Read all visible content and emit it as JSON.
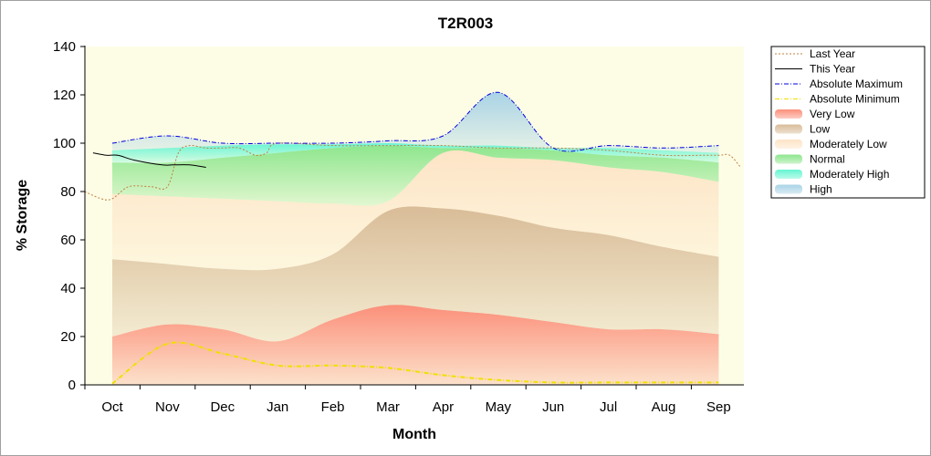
{
  "chart_data": {
    "type": "area",
    "title": "T2R003",
    "xlabel": "Month",
    "ylabel": "% Storage",
    "ylim": [
      0,
      140
    ],
    "yticks": [
      0,
      20,
      40,
      60,
      80,
      100,
      120,
      140
    ],
    "categories": [
      "Oct",
      "Nov",
      "Dec",
      "Jan",
      "Feb",
      "Mar",
      "Apr",
      "May",
      "Jun",
      "Jul",
      "Aug",
      "Sep"
    ],
    "grid": false,
    "legend_position": "right",
    "band_colors": {
      "Very Low": "#fb8f7a",
      "Low": "#d9bc98",
      "Moderately Low": "#fde4c6",
      "Normal": "#8ee68e",
      "Moderately High": "#66f5d2",
      "High": "#a9d3e6"
    },
    "bands": [
      {
        "name": "Very Low",
        "lower": [
          0,
          0,
          0,
          0,
          0,
          0,
          0,
          0,
          0,
          0,
          0,
          0
        ],
        "upper": [
          20,
          25,
          23,
          18,
          27,
          33,
          31,
          29,
          26,
          23,
          23,
          21
        ]
      },
      {
        "name": "Low",
        "lower": [
          20,
          25,
          23,
          18,
          27,
          33,
          31,
          29,
          26,
          23,
          23,
          21
        ],
        "upper": [
          52,
          50,
          48,
          48,
          54,
          72,
          73,
          70,
          65,
          62,
          57,
          53
        ]
      },
      {
        "name": "Moderately Low",
        "lower": [
          52,
          50,
          48,
          48,
          54,
          72,
          73,
          70,
          65,
          62,
          57,
          53
        ],
        "upper": [
          79,
          78,
          77,
          76,
          75,
          76,
          96,
          94,
          93,
          90,
          88,
          84
        ]
      },
      {
        "name": "Normal",
        "lower": [
          79,
          78,
          77,
          76,
          75,
          76,
          96,
          94,
          93,
          90,
          88,
          84
        ],
        "upper": [
          92,
          92,
          94,
          96,
          98,
          99,
          98,
          98,
          97,
          95,
          94,
          92
        ]
      },
      {
        "name": "Moderately High",
        "lower": [
          92,
          92,
          94,
          96,
          98,
          99,
          98,
          98,
          97,
          95,
          94,
          92
        ],
        "upper": [
          97,
          98,
          99,
          99.5,
          99.5,
          100,
          99,
          99,
          98,
          98,
          97,
          96
        ]
      },
      {
        "name": "High",
        "lower": [
          97,
          98,
          99,
          99.5,
          99.5,
          100,
          99,
          99,
          98,
          98,
          97,
          96
        ],
        "upper": [
          100,
          103,
          100,
          100,
          100,
          101,
          103,
          121,
          98,
          99,
          98,
          99
        ]
      }
    ],
    "series": [
      {
        "name": "Last Year",
        "color": "#c08040",
        "style": "dotted",
        "points": [
          [
            -0.5,
            80
          ],
          [
            -0.2,
            77
          ],
          [
            0,
            77
          ],
          [
            0.3,
            82
          ],
          [
            0.7,
            82
          ],
          [
            1,
            82
          ],
          [
            1.2,
            96
          ],
          [
            1.4,
            99
          ],
          [
            1.7,
            98
          ],
          [
            2.0,
            98
          ],
          [
            2.3,
            98
          ],
          [
            2.6,
            95
          ],
          [
            2.8,
            96
          ],
          [
            3.0,
            100
          ],
          [
            4,
            99
          ],
          [
            5,
            99
          ],
          [
            6,
            99
          ],
          [
            7,
            98
          ],
          [
            8,
            98
          ],
          [
            9,
            97
          ],
          [
            10,
            95
          ],
          [
            10.7,
            95
          ],
          [
            11.0,
            95
          ],
          [
            11.2,
            95
          ],
          [
            11.4,
            90
          ]
        ]
      },
      {
        "name": "This Year",
        "color": "#000000",
        "style": "solid",
        "points": [
          [
            -0.35,
            96
          ],
          [
            -0.1,
            95
          ],
          [
            0.1,
            95
          ],
          [
            0.4,
            93
          ],
          [
            0.9,
            91
          ],
          [
            1.1,
            91
          ],
          [
            1.4,
            91
          ],
          [
            1.7,
            90
          ]
        ]
      },
      {
        "name": "Absolute Maximum",
        "color": "#0000dd",
        "style": "dashdot",
        "values": [
          100,
          103,
          100,
          100,
          100,
          101,
          103,
          121,
          98,
          99,
          98,
          99
        ]
      },
      {
        "name": "Absolute Minimum",
        "color": "#f0e000",
        "style": "dashdot",
        "values": [
          0.5,
          17,
          13,
          8,
          8,
          7,
          4,
          2,
          1,
          1,
          1,
          1
        ]
      }
    ],
    "legend": [
      {
        "label": "Last Year",
        "kind": "line",
        "color": "#c08040",
        "style": "dotted"
      },
      {
        "label": "This Year",
        "kind": "line",
        "color": "#000000",
        "style": "solid"
      },
      {
        "label": "Absolute Maximum",
        "kind": "line",
        "color": "#0000dd",
        "style": "dashdot"
      },
      {
        "label": "Absolute Minimum",
        "kind": "line",
        "color": "#f0e000",
        "style": "dashdot"
      },
      {
        "label": "Very Low",
        "kind": "band",
        "color": "#fb8f7a"
      },
      {
        "label": "Low",
        "kind": "band",
        "color": "#d9bc98"
      },
      {
        "label": "Moderately Low",
        "kind": "band",
        "color": "#fde4c6"
      },
      {
        "label": "Normal",
        "kind": "band",
        "color": "#8ee68e"
      },
      {
        "label": "Moderately High",
        "kind": "band",
        "color": "#66f5d2"
      },
      {
        "label": "High",
        "kind": "band",
        "color": "#a9d3e6"
      }
    ],
    "plot_background": "#fdfde6"
  }
}
